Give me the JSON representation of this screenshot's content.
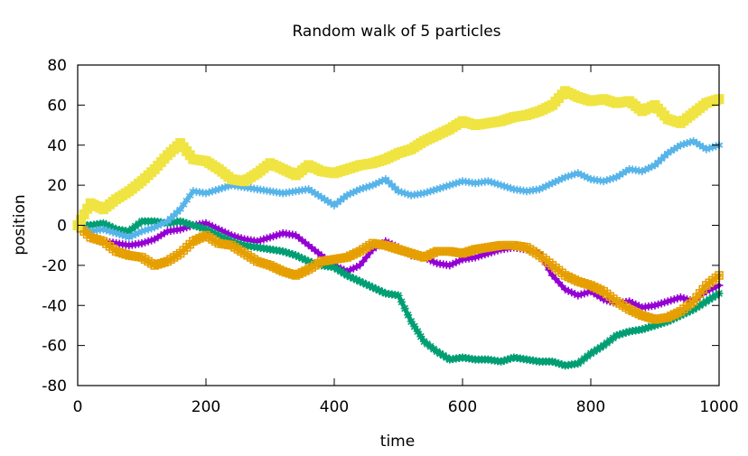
{
  "chart_data": {
    "type": "line",
    "title": "Random walk of 5 particles",
    "xlabel": "time",
    "ylabel": "position",
    "xlim": [
      0,
      1000
    ],
    "ylim": [
      -80,
      80
    ],
    "xticks": [
      0,
      200,
      400,
      600,
      800,
      1000
    ],
    "yticks": [
      -80,
      -60,
      -40,
      -20,
      0,
      20,
      40,
      60,
      80
    ],
    "grid": false,
    "legend": "none",
    "series": [
      {
        "color": "#9400d3",
        "marker": "plus",
        "x": [
          0,
          20,
          40,
          60,
          80,
          100,
          120,
          140,
          160,
          180,
          200,
          220,
          240,
          260,
          280,
          300,
          320,
          340,
          360,
          380,
          400,
          420,
          440,
          460,
          480,
          500,
          520,
          540,
          560,
          580,
          600,
          620,
          640,
          660,
          680,
          700,
          720,
          740,
          760,
          780,
          800,
          820,
          840,
          860,
          880,
          900,
          920,
          940,
          960,
          980,
          1000
        ],
        "y": [
          0,
          -5,
          -8,
          -9,
          -10,
          -9,
          -7,
          -3,
          -2,
          0,
          1,
          -2,
          -5,
          -7,
          -8,
          -6,
          -4,
          -5,
          -10,
          -15,
          -20,
          -23,
          -20,
          -12,
          -8,
          -11,
          -15,
          -16,
          -19,
          -20,
          -17,
          -16,
          -14,
          -12,
          -11,
          -12,
          -14,
          -25,
          -32,
          -35,
          -33,
          -37,
          -39,
          -38,
          -41,
          -40,
          -38,
          -36,
          -38,
          -33,
          -30
        ]
      },
      {
        "color": "#009e73",
        "marker": "star",
        "x": [
          0,
          20,
          40,
          60,
          80,
          100,
          120,
          140,
          160,
          180,
          200,
          220,
          240,
          260,
          280,
          300,
          320,
          340,
          360,
          380,
          400,
          420,
          440,
          460,
          480,
          500,
          520,
          540,
          560,
          580,
          600,
          620,
          640,
          660,
          680,
          700,
          720,
          740,
          760,
          780,
          800,
          820,
          840,
          860,
          880,
          900,
          920,
          940,
          960,
          980,
          1000
        ],
        "y": [
          0,
          0,
          1,
          -2,
          -3,
          2,
          2,
          1,
          2,
          0,
          -2,
          -5,
          -8,
          -10,
          -11,
          -12,
          -13,
          -15,
          -18,
          -20,
          -21,
          -25,
          -28,
          -31,
          -34,
          -35,
          -48,
          -58,
          -63,
          -67,
          -66,
          -67,
          -67,
          -68,
          -66,
          -67,
          -68,
          -68,
          -70,
          -69,
          -64,
          -60,
          -55,
          -53,
          -52,
          -50,
          -48,
          -45,
          -42,
          -38,
          -34
        ]
      },
      {
        "color": "#56b4e9",
        "marker": "asterisk",
        "x": [
          0,
          20,
          40,
          60,
          80,
          100,
          120,
          140,
          160,
          180,
          200,
          220,
          240,
          260,
          280,
          300,
          320,
          340,
          360,
          380,
          400,
          420,
          440,
          460,
          480,
          500,
          520,
          540,
          560,
          580,
          600,
          620,
          640,
          660,
          680,
          700,
          720,
          740,
          760,
          780,
          800,
          820,
          840,
          860,
          880,
          900,
          920,
          940,
          960,
          980,
          1000
        ],
        "y": [
          0,
          -3,
          -2,
          -4,
          -6,
          -3,
          -1,
          2,
          8,
          17,
          16,
          18,
          20,
          19,
          18,
          17,
          16,
          17,
          18,
          14,
          10,
          15,
          18,
          20,
          23,
          17,
          15,
          16,
          18,
          20,
          22,
          21,
          22,
          20,
          18,
          17,
          18,
          21,
          24,
          26,
          23,
          22,
          24,
          28,
          27,
          30,
          36,
          40,
          42,
          38,
          40
        ]
      },
      {
        "color": "#e69f00",
        "marker": "box",
        "x": [
          0,
          20,
          40,
          60,
          80,
          100,
          120,
          140,
          160,
          180,
          200,
          220,
          240,
          260,
          280,
          300,
          320,
          340,
          360,
          380,
          400,
          420,
          440,
          460,
          480,
          500,
          520,
          540,
          560,
          580,
          600,
          620,
          640,
          660,
          680,
          700,
          720,
          740,
          760,
          780,
          800,
          820,
          840,
          860,
          880,
          900,
          920,
          940,
          960,
          980,
          1000
        ],
        "y": [
          0,
          -6,
          -8,
          -13,
          -15,
          -16,
          -20,
          -18,
          -14,
          -8,
          -5,
          -9,
          -10,
          -14,
          -18,
          -20,
          -23,
          -25,
          -22,
          -18,
          -17,
          -16,
          -13,
          -9,
          -10,
          -12,
          -14,
          -16,
          -13,
          -13,
          -14,
          -12,
          -11,
          -10,
          -10,
          -11,
          -15,
          -20,
          -25,
          -28,
          -30,
          -33,
          -38,
          -42,
          -45,
          -47,
          -46,
          -43,
          -38,
          -30,
          -25
        ]
      },
      {
        "color": "#f0e442",
        "marker": "filled-box",
        "x": [
          0,
          20,
          40,
          60,
          80,
          100,
          120,
          140,
          160,
          180,
          200,
          220,
          240,
          260,
          280,
          300,
          320,
          340,
          360,
          380,
          400,
          420,
          440,
          460,
          480,
          500,
          520,
          540,
          560,
          580,
          600,
          620,
          640,
          660,
          680,
          700,
          720,
          740,
          760,
          780,
          800,
          820,
          840,
          860,
          880,
          900,
          920,
          940,
          960,
          980,
          1000
        ],
        "y": [
          0,
          11,
          8,
          13,
          17,
          22,
          28,
          35,
          41,
          33,
          32,
          28,
          23,
          22,
          26,
          31,
          28,
          25,
          30,
          27,
          26,
          28,
          30,
          31,
          33,
          36,
          38,
          42,
          45,
          48,
          52,
          50,
          51,
          52,
          54,
          55,
          57,
          60,
          67,
          64,
          62,
          63,
          61,
          62,
          57,
          60,
          53,
          51,
          56,
          61,
          63
        ]
      }
    ]
  }
}
